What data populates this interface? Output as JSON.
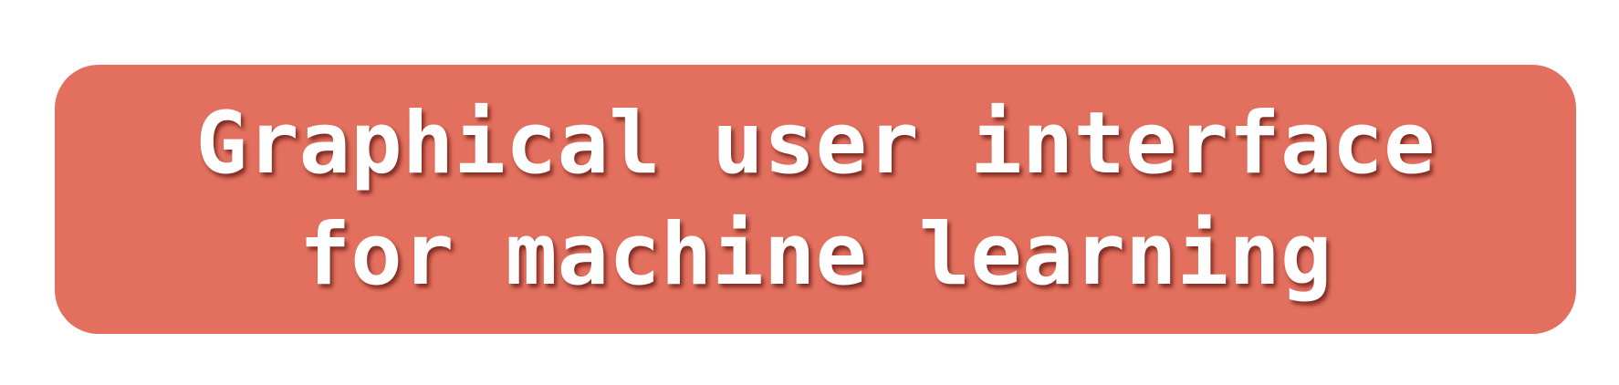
{
  "banner": {
    "line1": "Graphical user interface",
    "line2": "for machine learning",
    "background_color": "#e3705e",
    "text_color": "#ffffff"
  }
}
